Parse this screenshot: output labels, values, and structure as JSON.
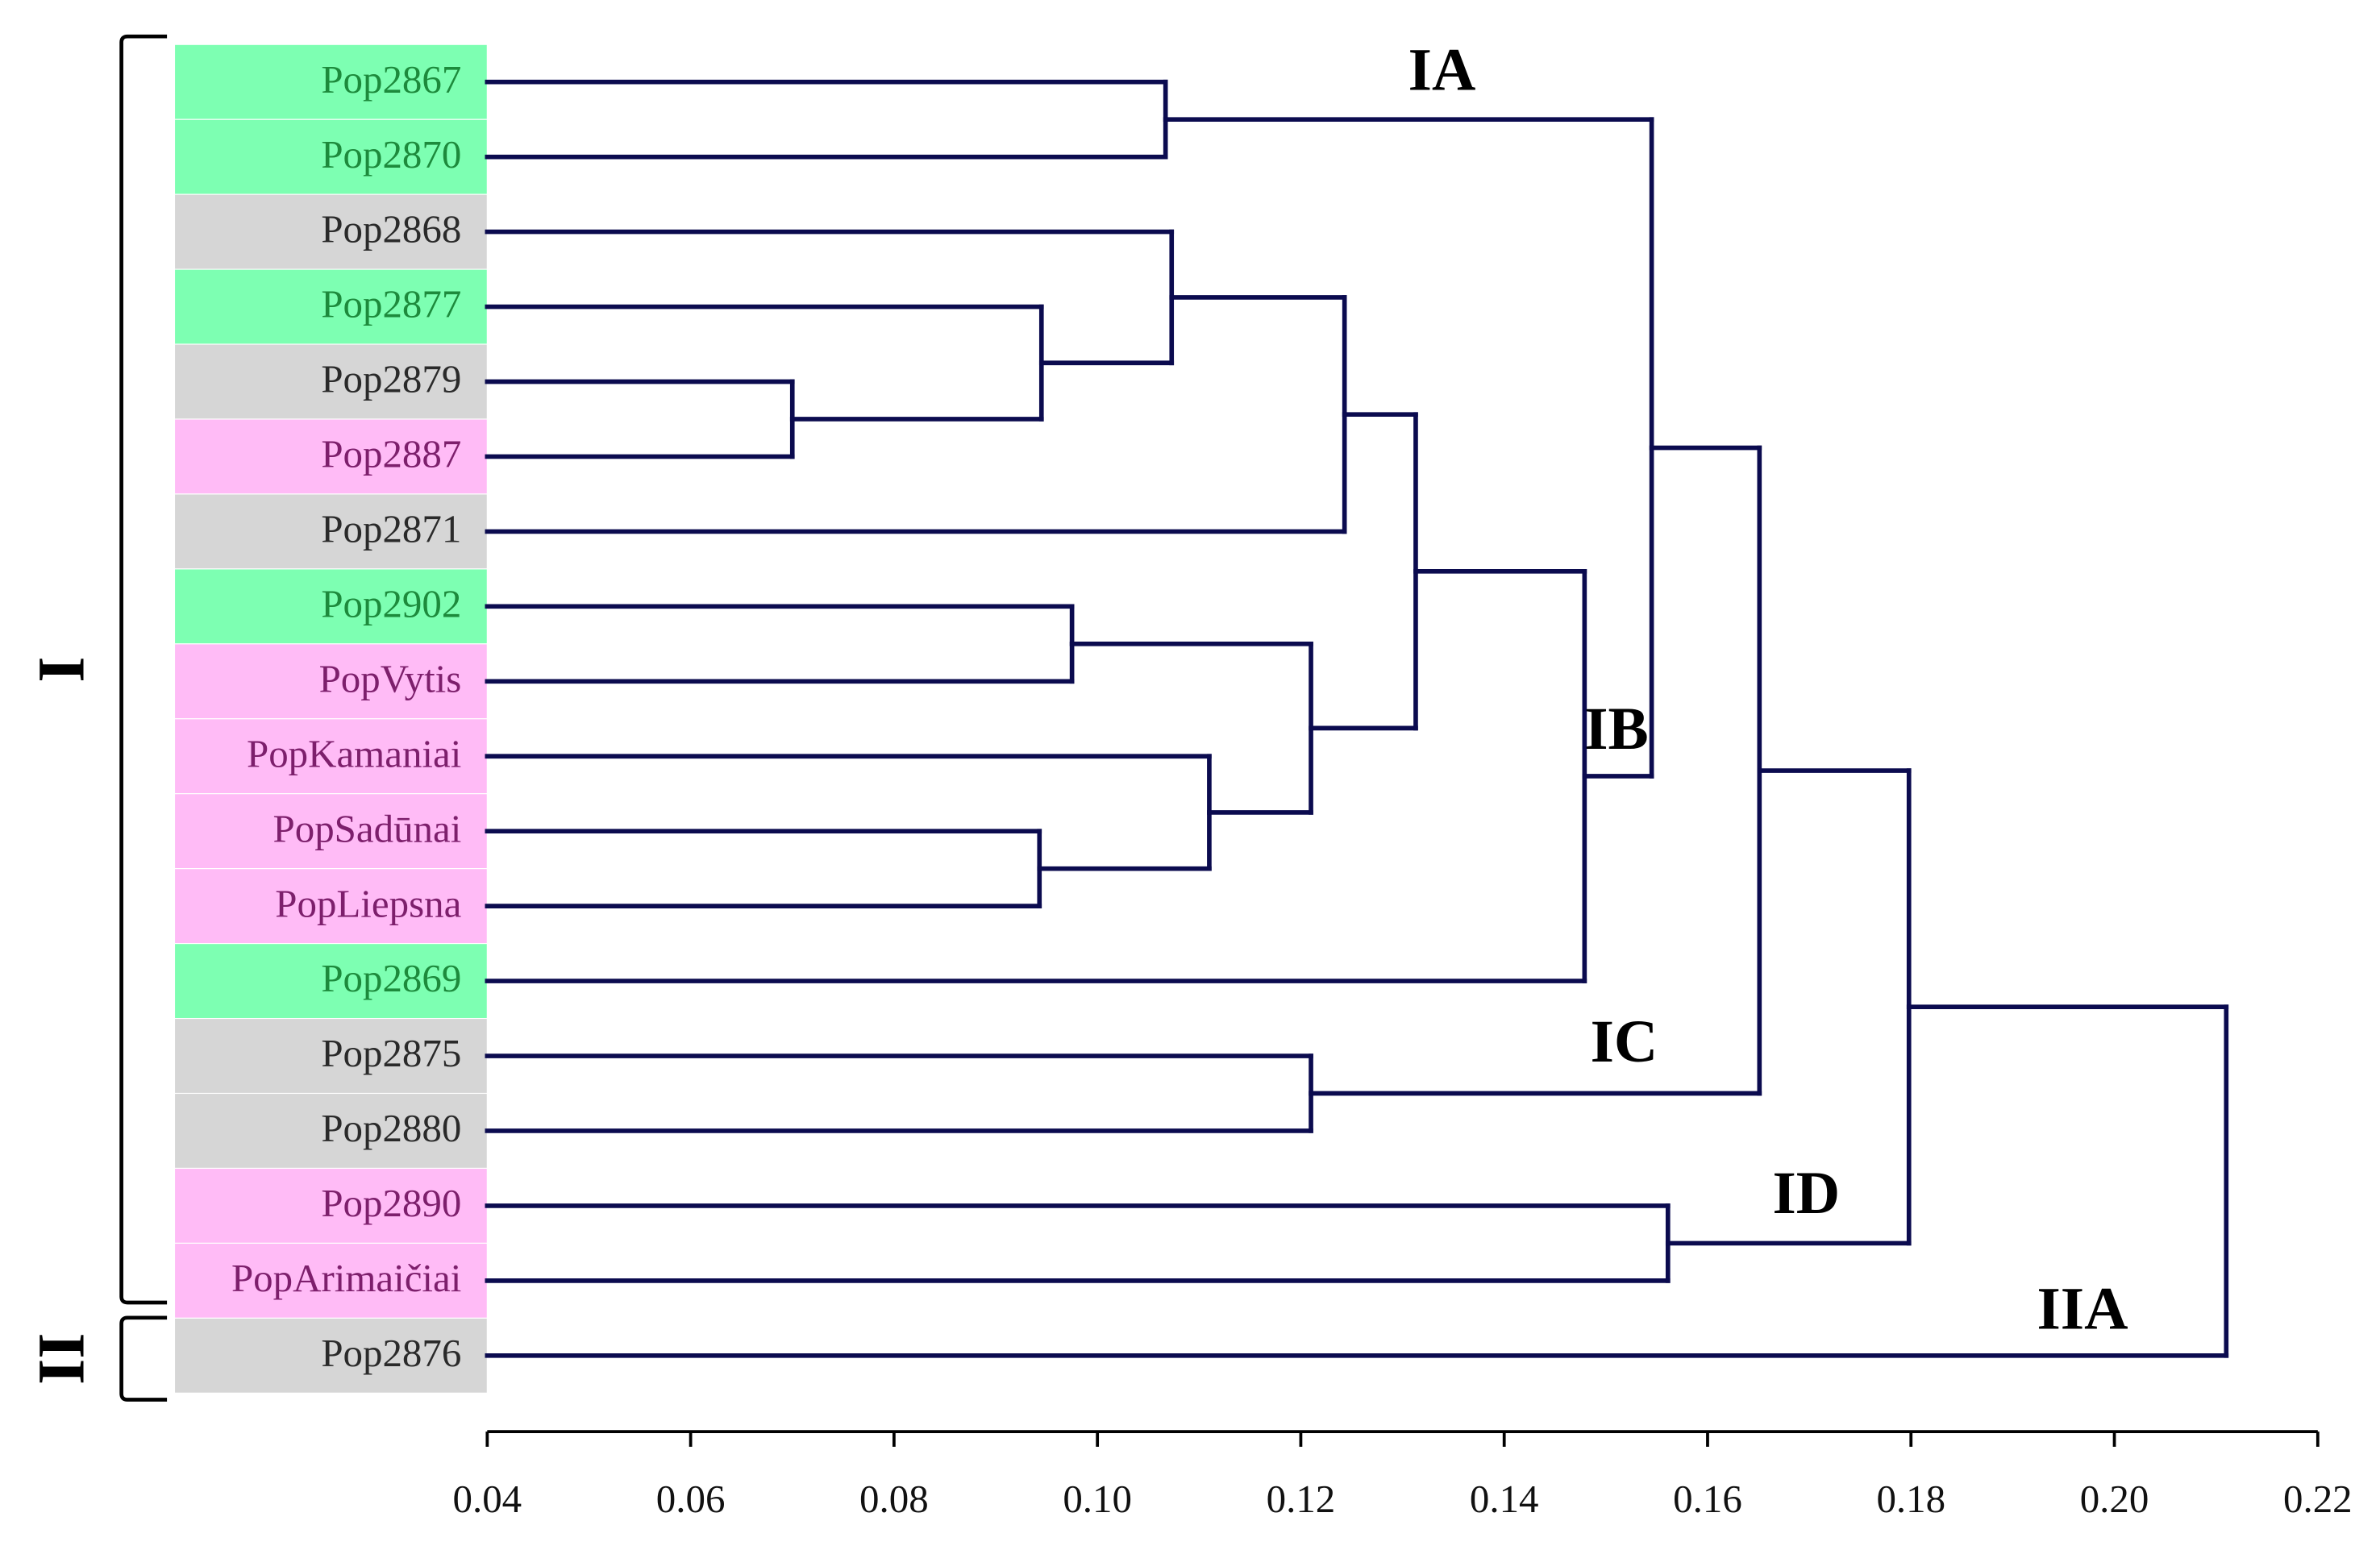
{
  "chart_data": {
    "type": "dendrogram",
    "line_color": "#0b0b4f",
    "xlim": [
      0.04,
      0.22
    ],
    "xticks": [
      0.04,
      0.06,
      0.08,
      {
        "value": 0.1,
        "label": "0.10"
      },
      0.12,
      0.14,
      0.16,
      0.18,
      {
        "value": 0.2,
        "label": "0.20"
      },
      0.22
    ],
    "cluster_labels": [
      "IA",
      "IB",
      "IC",
      "ID",
      "IIA"
    ],
    "brackets": [
      "I",
      "II"
    ],
    "tree": {
      "height": 0.211,
      "children": [
        {
          "height": 0.1798,
          "children": [
            {
              "height": 0.1651,
              "children": [
                {
                  "height": 0.1545,
                  "children": [
                    {
                      "height": 0.1067,
                      "children": [
                        {
                          "label": "Pop2867",
                          "color": "#7dffb2",
                          "text_color": "#1d8a3c"
                        },
                        {
                          "label": "Pop2870",
                          "color": "#7dffb2",
                          "text_color": "#1d8a3c"
                        }
                      ]
                    },
                    {
                      "height": 0.1479,
                      "children": [
                        {
                          "height": 0.1313,
                          "children": [
                            {
                              "height": 0.1243,
                              "children": [
                                {
                                  "height": 0.1073,
                                  "children": [
                                    {
                                      "label": "Pop2868",
                                      "color": "#d6d6d6",
                                      "text_color": "#2a2a2a"
                                    },
                                    {
                                      "height": 0.0945,
                                      "children": [
                                        {
                                          "label": "Pop2877",
                                          "color": "#7dffb2",
                                          "text_color": "#1d8a3c"
                                        },
                                        {
                                          "height": 0.07,
                                          "children": [
                                            {
                                              "label": "Pop2879",
                                              "color": "#d6d6d6",
                                              "text_color": "#2a2a2a"
                                            },
                                            {
                                              "label": "Pop2887",
                                              "color": "#ffbbf6",
                                              "text_color": "#7d1f6c"
                                            }
                                          ]
                                        }
                                      ]
                                    }
                                  ]
                                },
                                {
                                  "label": "Pop2871",
                                  "color": "#d6d6d6",
                                  "text_color": "#2a2a2a"
                                }
                              ]
                            },
                            {
                              "height": 0.121,
                              "children": [
                                {
                                  "height": 0.0975,
                                  "children": [
                                    {
                                      "label": "Pop2902",
                                      "color": "#7dffb2",
                                      "text_color": "#1d8a3c"
                                    },
                                    {
                                      "label": "PopVytis",
                                      "color": "#ffbbf6",
                                      "text_color": "#7d1f6c"
                                    }
                                  ]
                                },
                                {
                                  "height": 0.111,
                                  "children": [
                                    {
                                      "label": "PopKamaniai",
                                      "color": "#ffbbf6",
                                      "text_color": "#7d1f6c"
                                    },
                                    {
                                      "height": 0.0943,
                                      "children": [
                                        {
                                          "label": "PopSadūnai",
                                          "color": "#ffbbf6",
                                          "text_color": "#7d1f6c"
                                        },
                                        {
                                          "label": "PopLiepsna",
                                          "color": "#ffbbf6",
                                          "text_color": "#7d1f6c"
                                        }
                                      ]
                                    }
                                  ]
                                }
                              ]
                            }
                          ]
                        },
                        {
                          "label": "Pop2869",
                          "color": "#7dffb2",
                          "text_color": "#1d8a3c"
                        }
                      ]
                    }
                  ]
                },
                {
                  "height": 0.121,
                  "children": [
                    {
                      "label": "Pop2875",
                      "color": "#d6d6d6",
                      "text_color": "#2a2a2a"
                    },
                    {
                      "label": "Pop2880",
                      "color": "#d6d6d6",
                      "text_color": "#2a2a2a"
                    }
                  ]
                }
              ]
            },
            {
              "height": 0.1561,
              "children": [
                {
                  "label": "Pop2890",
                  "color": "#ffbbf6",
                  "text_color": "#7d1f6c"
                },
                {
                  "label": "PopArimaičiai",
                  "color": "#ffbbf6",
                  "text_color": "#7d1f6c"
                }
              ]
            }
          ]
        },
        {
          "label": "Pop2876",
          "color": "#d6d6d6",
          "text_color": "#2a2a2a"
        }
      ]
    }
  }
}
